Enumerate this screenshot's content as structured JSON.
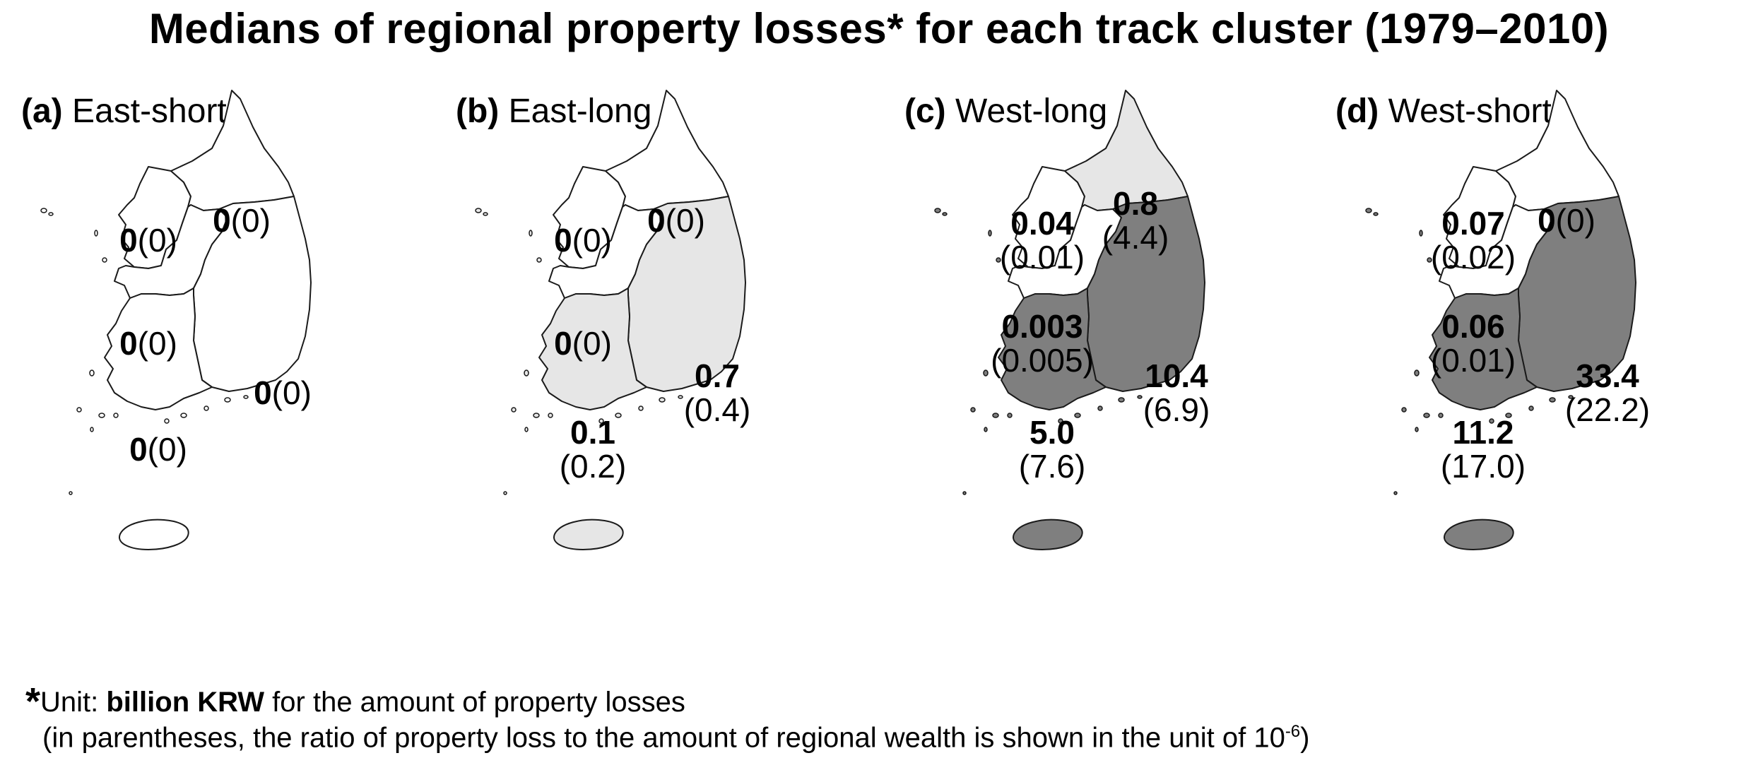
{
  "title": "Medians of regional property losses* for each track cluster (1979–2010)",
  "colors": {
    "white": "#ffffff",
    "light": "#e6e6e6",
    "dark": "#7f7f7f",
    "border": "#1a1a1a"
  },
  "panels": [
    {
      "letter": "(a)",
      "name": "East-short",
      "fills": {
        "north_w": "white",
        "north_e": "white",
        "central_w": "white",
        "east": "white",
        "south_w": "white",
        "jeju": "white"
      },
      "labels": {
        "north_w": {
          "value": "0",
          "ratio": "(0)"
        },
        "north_e": {
          "value": "0",
          "ratio": "(0)"
        },
        "central_w": {
          "value": "0",
          "ratio": "(0)"
        },
        "east": {
          "value": "0",
          "ratio": "(0)"
        },
        "south_w": {
          "value": "0",
          "ratio": "(0)"
        }
      }
    },
    {
      "letter": "(b)",
      "name": "East-long",
      "fills": {
        "north_w": "white",
        "north_e": "white",
        "central_w": "white",
        "east": "light",
        "south_w": "light",
        "jeju": "light"
      },
      "labels": {
        "north_w": {
          "value": "0",
          "ratio": "(0)"
        },
        "north_e": {
          "value": "0",
          "ratio": "(0)"
        },
        "central_w": {
          "value": "0",
          "ratio": "(0)"
        },
        "east": {
          "value": "0.7",
          "ratio": "(0.4)"
        },
        "south_w": {
          "value": "0.1",
          "ratio": "(0.2)"
        }
      }
    },
    {
      "letter": "(c)",
      "name": "West-long",
      "fills": {
        "north_w": "white",
        "north_e": "light",
        "central_w": "white",
        "east": "dark",
        "south_w": "dark",
        "jeju": "dark"
      },
      "labels": {
        "north_w": {
          "value": "0.04",
          "ratio": "(0.01)"
        },
        "north_e": {
          "value": "0.8",
          "ratio": "(4.4)"
        },
        "central_w": {
          "value": "0.003",
          "ratio": "(0.005)"
        },
        "east": {
          "value": "10.4",
          "ratio": "(6.9)"
        },
        "south_w": {
          "value": "5.0",
          "ratio": "(7.6)"
        }
      }
    },
    {
      "letter": "(d)",
      "name": "West-short",
      "fills": {
        "north_w": "white",
        "north_e": "white",
        "central_w": "white",
        "east": "dark",
        "south_w": "dark",
        "jeju": "dark"
      },
      "labels": {
        "north_w": {
          "value": "0.07",
          "ratio": "(0.02)"
        },
        "north_e": {
          "value": "0",
          "ratio": "(0)"
        },
        "central_w": {
          "value": "0.06",
          "ratio": "(0.01)"
        },
        "east": {
          "value": "33.4",
          "ratio": "(22.2)"
        },
        "south_w": {
          "value": "11.2",
          "ratio": "(17.0)"
        }
      }
    }
  ],
  "footnote": {
    "asterisk": "*",
    "line1_prefix": "Unit: ",
    "line1_bold": "billion KRW",
    "line1_suffix": " for the amount of property losses",
    "line2_prefix": "(in parentheses, the ratio of property loss to the amount of regional wealth is shown in the unit of 10",
    "line2_sup": "-6",
    "line2_suffix": ")"
  }
}
